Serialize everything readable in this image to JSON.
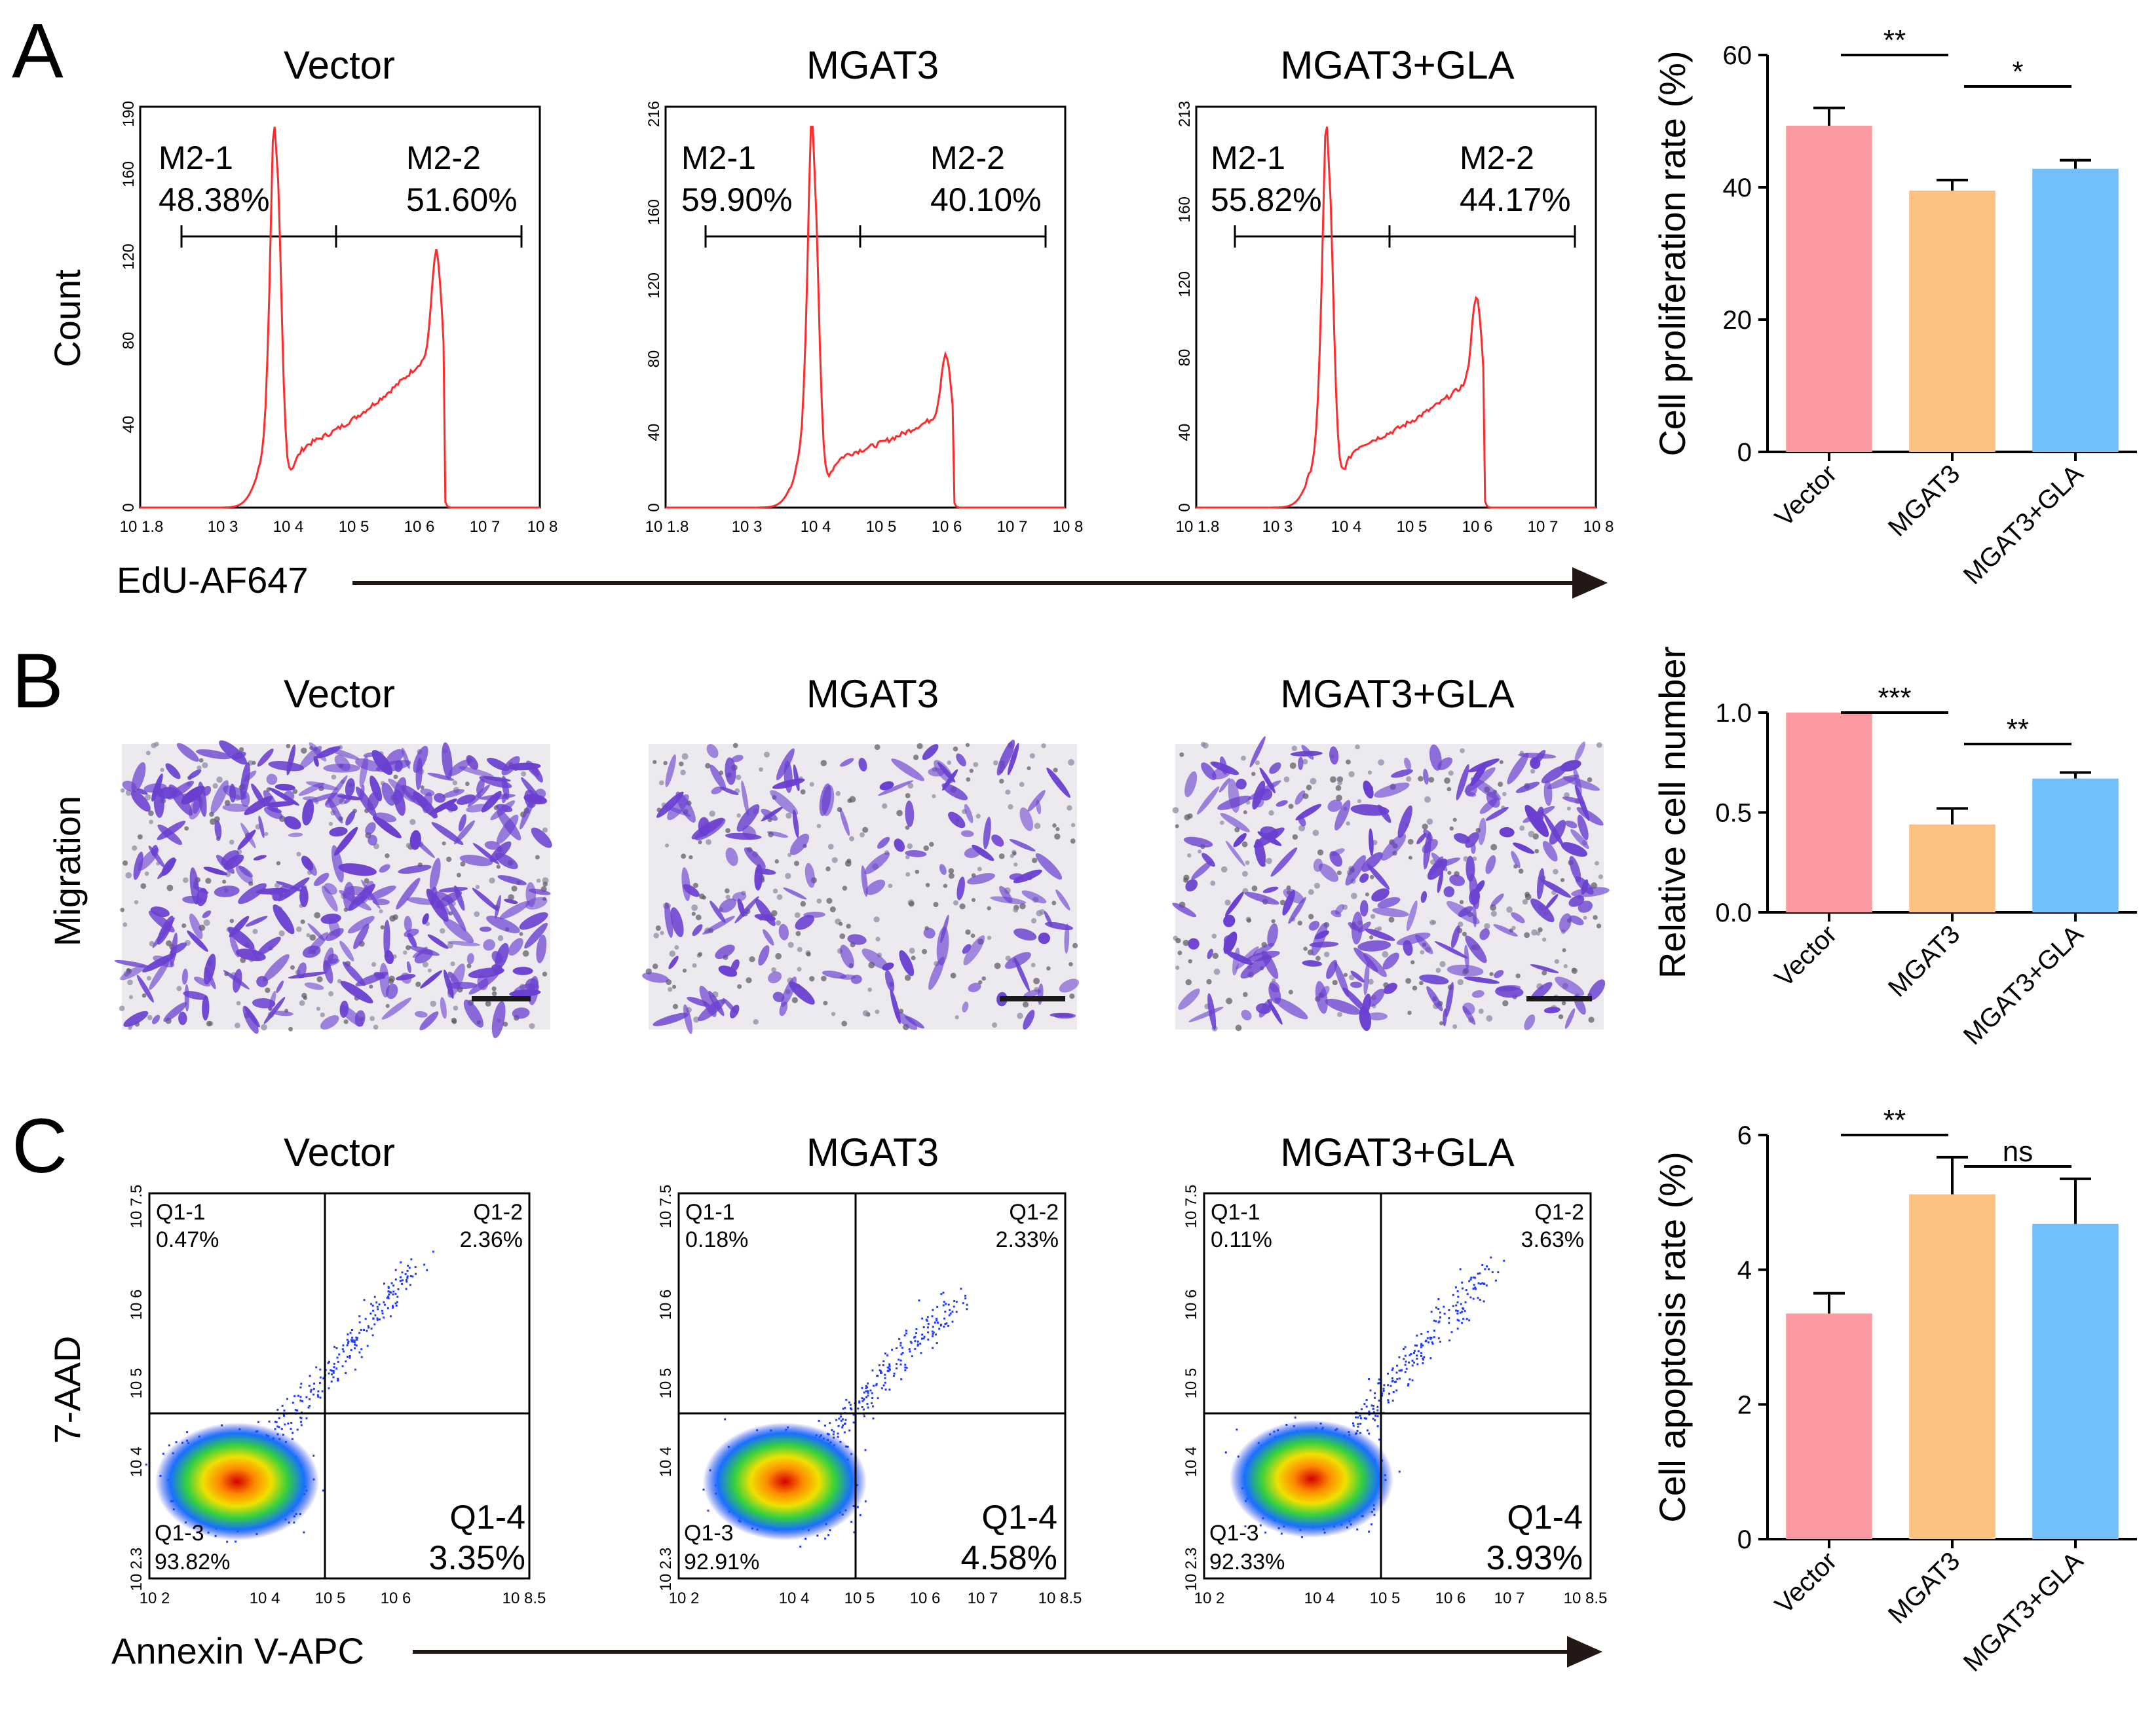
{
  "colors": {
    "histogram_line": "#ff2b2b",
    "arrow": "#231815",
    "stain": "#6a3fd0",
    "bar_fills": [
      "#fb9aa0",
      "#fdc27f",
      "#72c0fb"
    ]
  },
  "panel_a": {
    "letter": "A",
    "y_axis_title": "Count",
    "x_axis_title": "EdU-AF647",
    "histograms": [
      {
        "title": "Vector",
        "y_ticks": [
          "0",
          "40",
          "80",
          "120",
          "160",
          "190"
        ],
        "x_ticks": [
          "10 1.8",
          "10 3",
          "10 4",
          "10 5",
          "10 6",
          "10 7",
          "10 8"
        ],
        "gate_left": {
          "name": "M2-1",
          "pct": "48.38%"
        },
        "gate_right": {
          "name": "M2-2",
          "pct": "51.60%"
        }
      },
      {
        "title": "MGAT3",
        "y_ticks": [
          "0",
          "40",
          "80",
          "120",
          "160",
          "216"
        ],
        "x_ticks": [
          "10 1.8",
          "10 3",
          "10 4",
          "10 5",
          "10 6",
          "10 7",
          "10 8"
        ],
        "gate_left": {
          "name": "M2-1",
          "pct": "59.90%"
        },
        "gate_right": {
          "name": "M2-2",
          "pct": "40.10%"
        }
      },
      {
        "title": "MGAT3+GLA",
        "y_ticks": [
          "0",
          "40",
          "80",
          "120",
          "160",
          "213"
        ],
        "x_ticks": [
          "10 1.8",
          "10 3",
          "10 4",
          "10 5",
          "10 6",
          "10 7",
          "10 8"
        ],
        "gate_left": {
          "name": "M2-1",
          "pct": "55.82%"
        },
        "gate_right": {
          "name": "M2-2",
          "pct": "44.17%"
        }
      }
    ]
  },
  "panel_b": {
    "letter": "B",
    "row_label": "Migration",
    "image_titles": [
      "Vector",
      "MGAT3",
      "MGAT3+GLA"
    ]
  },
  "panel_c": {
    "letter": "C",
    "y_axis_title": "7-AAD",
    "x_axis_title": "Annexin V-APC",
    "plots": [
      {
        "title": "Vector",
        "y_ticks": [
          "10 2.3",
          "10 4",
          "10 5",
          "10 6",
          "10 7.5"
        ],
        "x_ticks": [
          "10 2",
          "10 4",
          "10 5",
          "10 6",
          "10 8.5"
        ],
        "q1_1": {
          "name": "Q1-1",
          "pct": "0.47%"
        },
        "q1_2": {
          "name": "Q1-2",
          "pct": "2.36%"
        },
        "q1_3": {
          "name": "Q1-3",
          "pct": "93.82%"
        },
        "q1_4": {
          "name": "Q1-4",
          "pct": "3.35%"
        }
      },
      {
        "title": "MGAT3",
        "y_ticks": [
          "10 2.3",
          "10 4",
          "10 5",
          "10 6",
          "10 7.5"
        ],
        "x_ticks": [
          "10 2",
          "10 4",
          "10 5",
          "10 6",
          "10 7",
          "10 8.5"
        ],
        "q1_1": {
          "name": "Q1-1",
          "pct": "0.18%"
        },
        "q1_2": {
          "name": "Q1-2",
          "pct": "2.33%"
        },
        "q1_3": {
          "name": "Q1-3",
          "pct": "92.91%"
        },
        "q1_4": {
          "name": "Q1-4",
          "pct": "4.58%"
        }
      },
      {
        "title": "MGAT3+GLA",
        "y_ticks": [
          "10 2.3",
          "10 4",
          "10 5",
          "10 6",
          "10 7.5"
        ],
        "x_ticks": [
          "10 2",
          "10 4",
          "10 5",
          "10 6",
          "10 7",
          "10 8.5"
        ],
        "q1_1": {
          "name": "Q1-1",
          "pct": "0.11%"
        },
        "q1_2": {
          "name": "Q1-2",
          "pct": "3.63%"
        },
        "q1_3": {
          "name": "Q1-3",
          "pct": "92.33%"
        },
        "q1_4": {
          "name": "Q1-4",
          "pct": "3.93%"
        }
      }
    ]
  },
  "chart_data": [
    {
      "type": "bar",
      "panel": "A",
      "categories": [
        "Vector",
        "MGAT3",
        "MGAT3+GLA"
      ],
      "values": [
        49.3,
        39.5,
        42.8
      ],
      "errors": [
        2.7,
        1.6,
        1.3
      ],
      "ylabel": "Cell proliferation rate (%)",
      "ylim": [
        0,
        60
      ],
      "yticks": [
        0,
        20,
        40,
        60
      ],
      "significance": [
        {
          "from": 0,
          "to": 1,
          "label": "**"
        },
        {
          "from": 1,
          "to": 2,
          "label": "*"
        }
      ]
    },
    {
      "type": "bar",
      "panel": "B",
      "categories": [
        "Vector",
        "MGAT3",
        "MGAT3+GLA"
      ],
      "values": [
        1.0,
        0.44,
        0.67
      ],
      "errors": [
        0,
        0.08,
        0.03
      ],
      "ylabel": "Relative cell number",
      "ylim": [
        0,
        1.0
      ],
      "yticks": [
        0.0,
        0.5,
        1.0
      ],
      "ytick_labels": [
        "0.0",
        "0.5",
        "1.0"
      ],
      "significance": [
        {
          "from": 0,
          "to": 1,
          "label": "***"
        },
        {
          "from": 1,
          "to": 2,
          "label": "**"
        }
      ]
    },
    {
      "type": "bar",
      "panel": "C",
      "categories": [
        "Vector",
        "MGAT3",
        "MGAT3+GLA"
      ],
      "values": [
        3.35,
        5.12,
        4.68
      ],
      "errors": [
        0.3,
        0.55,
        0.67
      ],
      "ylabel": "Cell apoptosis rate (%)",
      "ylim": [
        0,
        6
      ],
      "yticks": [
        0,
        2,
        4,
        6
      ],
      "significance": [
        {
          "from": 0,
          "to": 1,
          "label": "**"
        },
        {
          "from": 1,
          "to": 2,
          "label": "ns"
        }
      ]
    }
  ]
}
